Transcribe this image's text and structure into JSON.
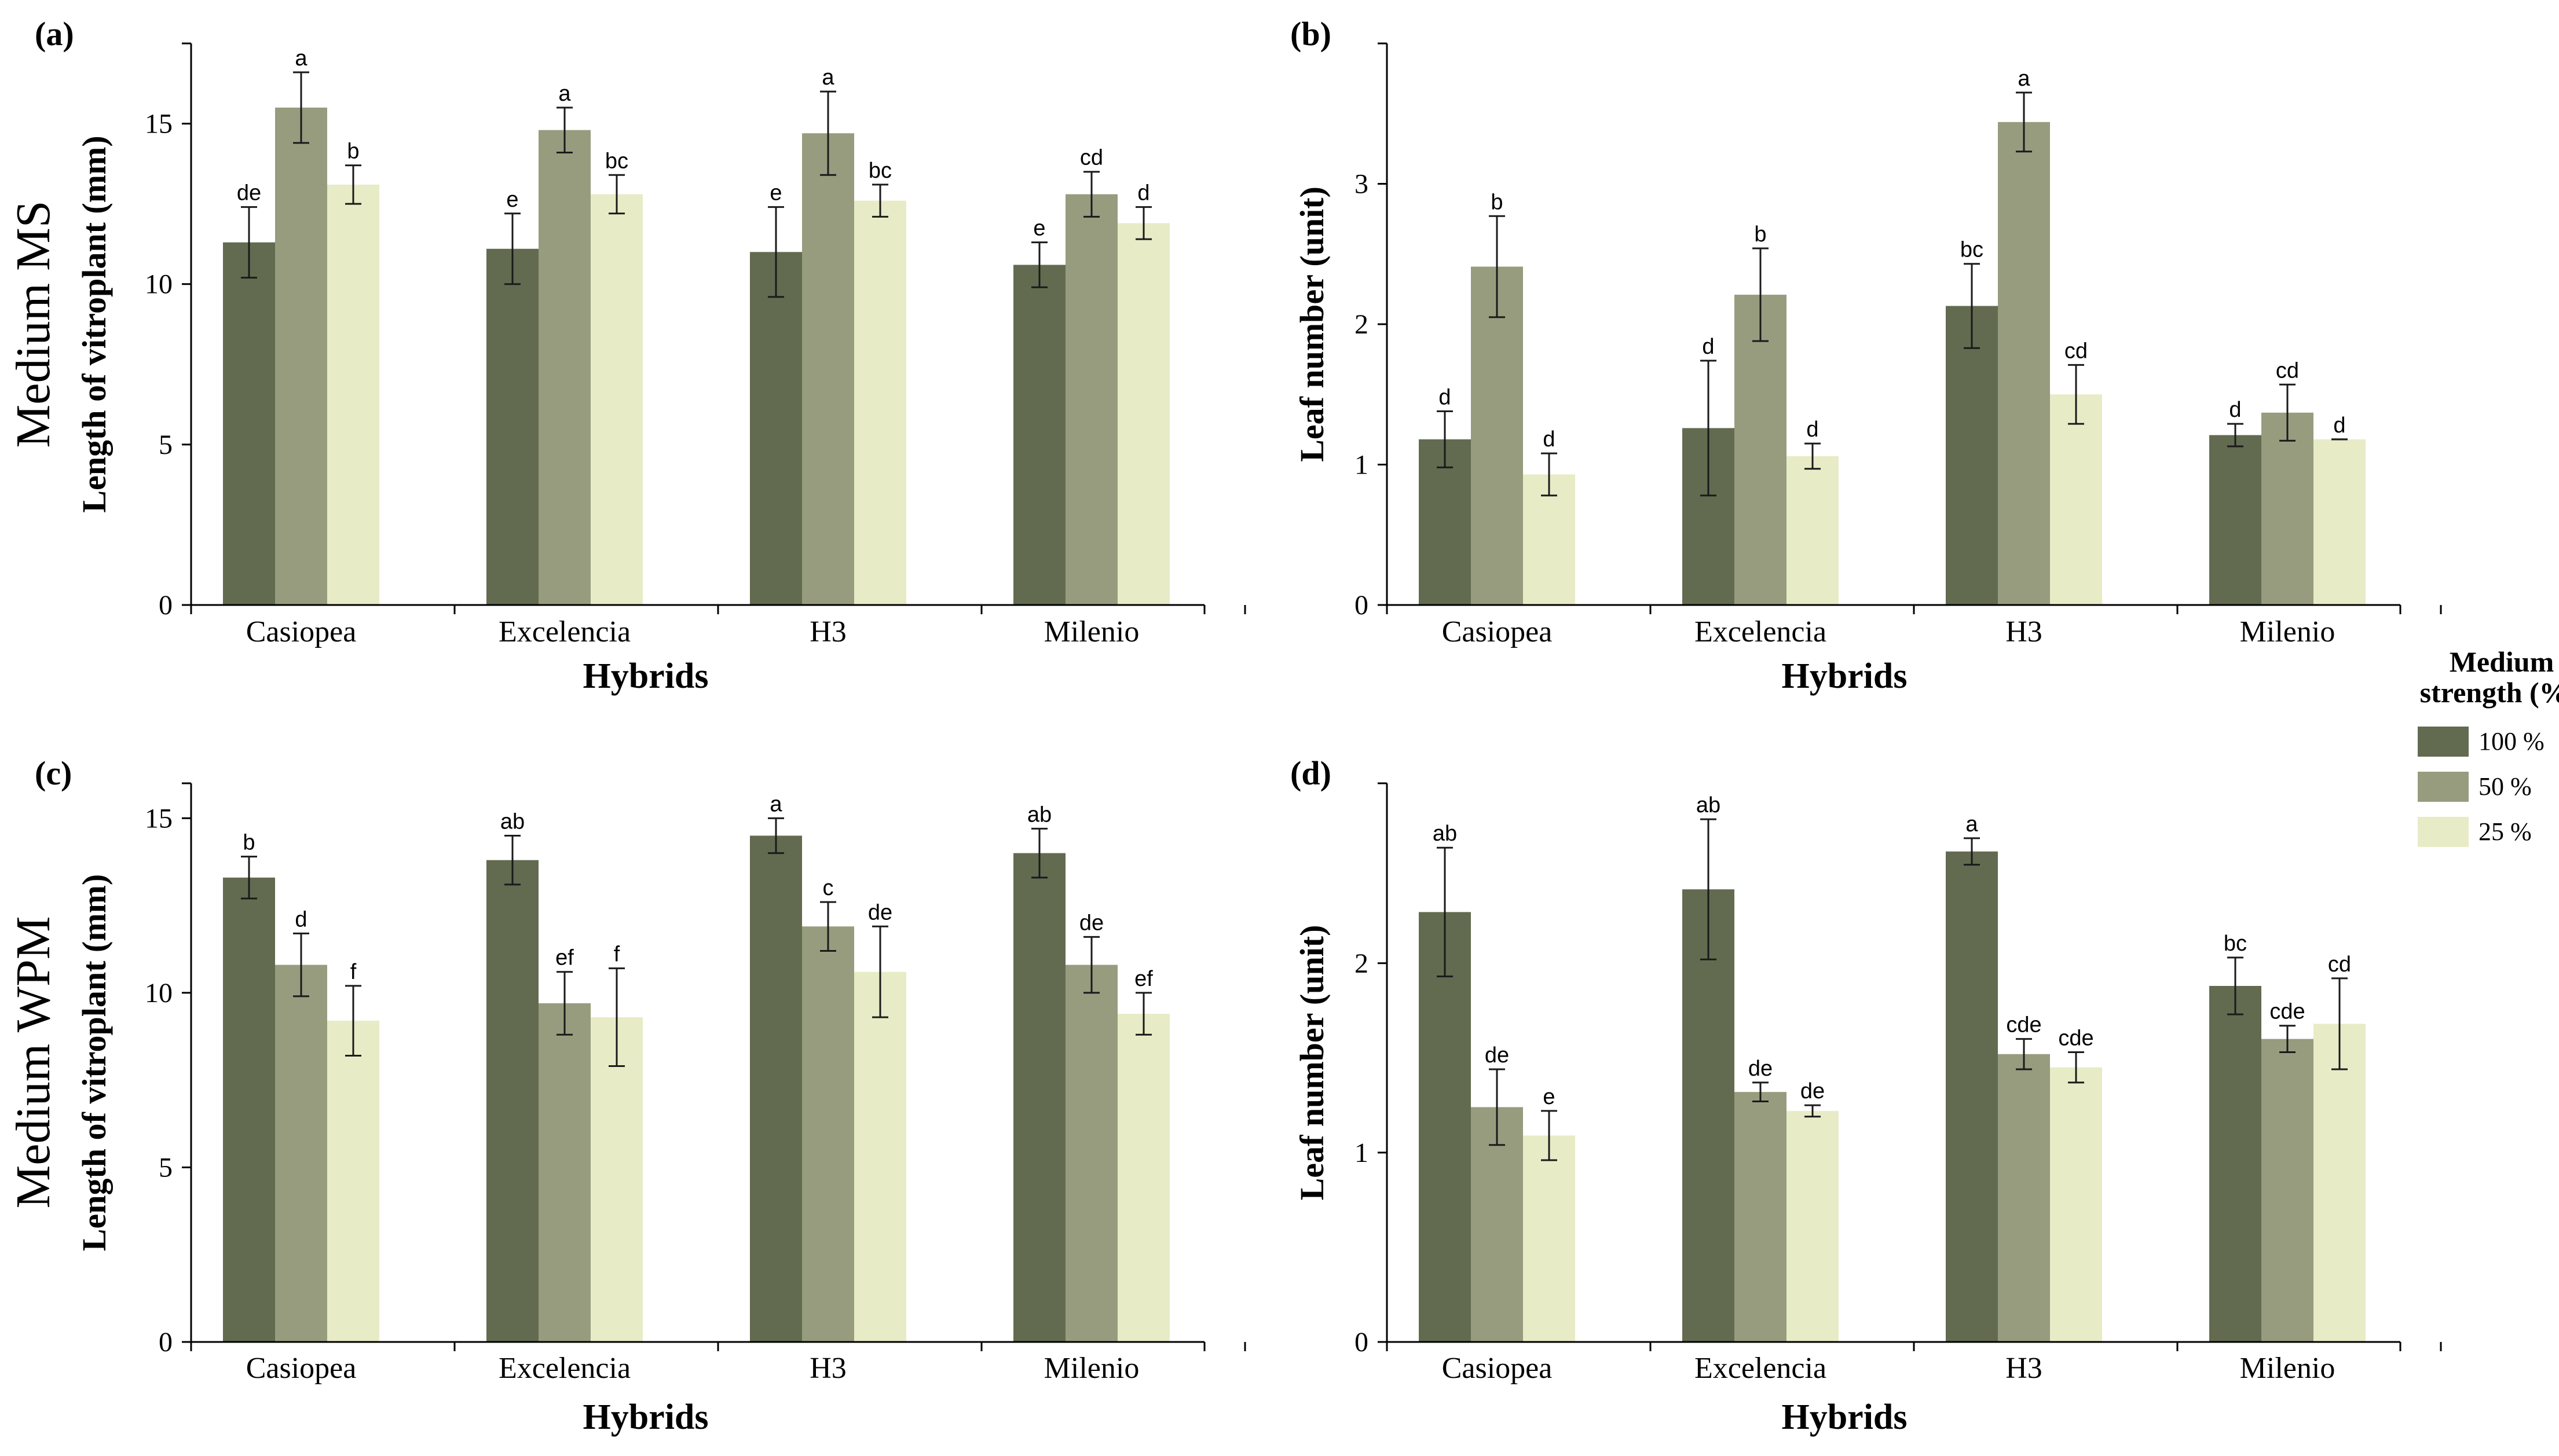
{
  "row_labels": [
    "Medium MS",
    "Medium WPM"
  ],
  "legend": {
    "title_line1": "Medium",
    "title_line2": "strength (%)",
    "entries": [
      {
        "label": "100 %",
        "color": "#626b50"
      },
      {
        "label": "50 %",
        "color": "#979c7e"
      },
      {
        "label": "25 %",
        "color": "#e8ecc6"
      }
    ]
  },
  "colors": {
    "s100": "#626b50",
    "s50": "#979c7e",
    "s25": "#e8ecc6",
    "axis": "#000000"
  },
  "chart_data": [
    {
      "panel": "(a)",
      "type": "bar",
      "xlabel": "Hybrids",
      "ylabel": "Length of vitroplant (mm)",
      "categories": [
        "Casiopea",
        "Excelencia",
        "H3",
        "Milenio"
      ],
      "ylim": [
        0,
        17.5
      ],
      "yticks": [
        0,
        5,
        10,
        15
      ],
      "ytick_labels": [
        "0",
        "5",
        "10",
        "15"
      ],
      "series": [
        {
          "name": "100 %",
          "values": [
            11.3,
            11.1,
            11.0,
            10.6
          ],
          "errors": [
            1.1,
            1.1,
            1.4,
            0.7
          ],
          "letters": [
            "de",
            "e",
            "e",
            "e"
          ]
        },
        {
          "name": "50 %",
          "values": [
            15.5,
            14.8,
            14.7,
            12.8
          ],
          "errors": [
            1.1,
            0.7,
            1.3,
            0.7
          ],
          "letters": [
            "a",
            "a",
            "a",
            "cd"
          ]
        },
        {
          "name": "25 %",
          "values": [
            13.1,
            12.8,
            12.6,
            11.9
          ],
          "errors": [
            0.6,
            0.6,
            0.5,
            0.5
          ],
          "letters": [
            "b",
            "bc",
            "bc",
            "d"
          ]
        }
      ]
    },
    {
      "panel": "(b)",
      "type": "bar",
      "xlabel": "Hybrids",
      "ylabel": "Leaf number (unit)",
      "categories": [
        "Casiopea",
        "Excelencia",
        "H3",
        "Milenio"
      ],
      "ylim": [
        0,
        4
      ],
      "yticks": [
        0,
        1,
        2,
        3
      ],
      "ytick_labels": [
        "0",
        "1",
        "2",
        "3"
      ],
      "series": [
        {
          "name": "100 %",
          "values": [
            1.18,
            1.26,
            2.13,
            1.21
          ],
          "errors": [
            0.2,
            0.48,
            0.3,
            0.08
          ],
          "letters": [
            "d",
            "d",
            "bc",
            "d"
          ]
        },
        {
          "name": "50 %",
          "values": [
            2.41,
            2.21,
            3.44,
            1.37
          ],
          "errors": [
            0.36,
            0.33,
            0.21,
            0.2
          ],
          "letters": [
            "b",
            "b",
            "a",
            "cd"
          ]
        },
        {
          "name": "25 %",
          "values": [
            0.93,
            1.06,
            1.5,
            1.18
          ],
          "errors": [
            0.15,
            0.09,
            0.21,
            0.0
          ],
          "letters": [
            "d",
            "d",
            "cd",
            "d"
          ]
        }
      ]
    },
    {
      "panel": "(c)",
      "type": "bar",
      "xlabel": "Hybrids",
      "ylabel": "Length of vitroplant (mm)",
      "categories": [
        "Casiopea",
        "Excelencia",
        "H3",
        "Milenio"
      ],
      "ylim": [
        0,
        16
      ],
      "yticks": [
        0,
        5,
        10,
        15
      ],
      "ytick_labels": [
        "0",
        "5",
        "10",
        "15"
      ],
      "series": [
        {
          "name": "100 %",
          "values": [
            13.3,
            13.8,
            14.5,
            14.0
          ],
          "errors": [
            0.6,
            0.7,
            0.5,
            0.7
          ],
          "letters": [
            "b",
            "ab",
            "a",
            "ab"
          ]
        },
        {
          "name": "50 %",
          "values": [
            10.8,
            9.7,
            11.9,
            10.8
          ],
          "errors": [
            0.9,
            0.9,
            0.7,
            0.8
          ],
          "letters": [
            "d",
            "ef",
            "c",
            "de"
          ]
        },
        {
          "name": "25 %",
          "values": [
            9.2,
            9.3,
            10.6,
            9.4
          ],
          "errors": [
            1.0,
            1.4,
            1.3,
            0.6
          ],
          "letters": [
            "f",
            "f",
            "de",
            "ef"
          ]
        }
      ]
    },
    {
      "panel": "(d)",
      "type": "bar",
      "xlabel": "Hybrids",
      "ylabel": "Leaf number (unit)",
      "categories": [
        "Casiopea",
        "Excelencia",
        "H3",
        "Milenio"
      ],
      "ylim": [
        0,
        2.95
      ],
      "yticks": [
        0,
        1,
        2
      ],
      "ytick_labels": [
        "0",
        "1",
        "2"
      ],
      "series": [
        {
          "name": "100 %",
          "values": [
            2.27,
            2.39,
            2.59,
            1.88
          ],
          "errors": [
            0.34,
            0.37,
            0.07,
            0.15
          ],
          "letters": [
            "ab",
            "ab",
            "a",
            "bc"
          ]
        },
        {
          "name": "50 %",
          "values": [
            1.24,
            1.32,
            1.52,
            1.6
          ],
          "errors": [
            0.2,
            0.05,
            0.08,
            0.07
          ],
          "letters": [
            "de",
            "de",
            "cde",
            "cde"
          ]
        },
        {
          "name": "25 %",
          "values": [
            1.09,
            1.22,
            1.45,
            1.68
          ],
          "errors": [
            0.13,
            0.03,
            0.08,
            0.24
          ],
          "letters": [
            "e",
            "de",
            "cde",
            "cd"
          ]
        }
      ]
    }
  ]
}
